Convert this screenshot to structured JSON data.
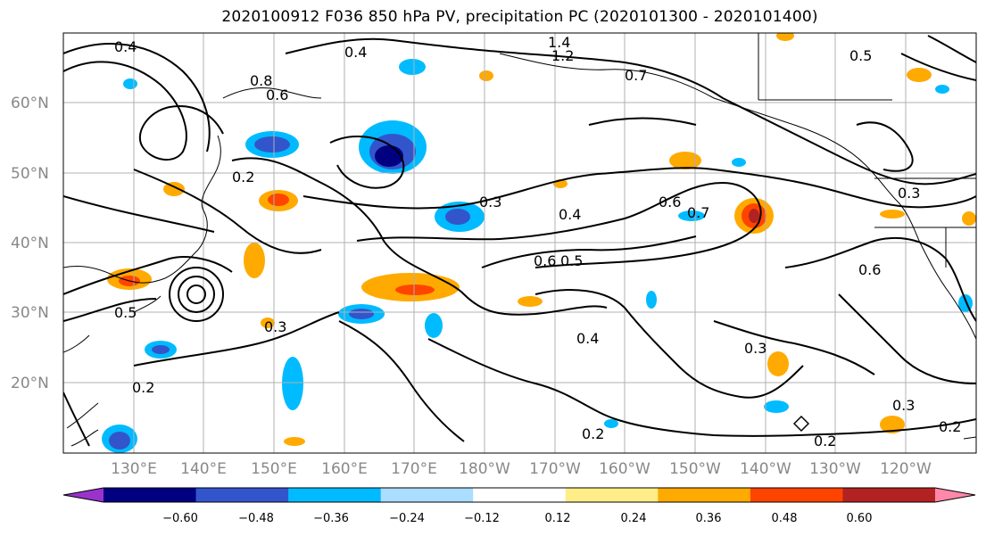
{
  "title": "2020100912 F036 850 hPa PV, precipitation PC (2020101300 - 2020101400)",
  "map": {
    "lat_labels": [
      "60°N",
      "50°N",
      "40°N",
      "30°N",
      "20°N"
    ],
    "lon_labels": [
      "130°E",
      "140°E",
      "150°E",
      "160°E",
      "170°E",
      "180°W",
      "170°W",
      "160°W",
      "150°W",
      "140°W",
      "130°W",
      "120°W"
    ],
    "contour_labels": [
      "0.4",
      "1.4",
      "1.2",
      "0.4",
      "0.5",
      "0.8",
      "0.6",
      "0.7",
      "0.2",
      "0.3",
      "0.5",
      "0.3",
      "0.6",
      "0.4",
      "0.6",
      "0.5",
      "0.4",
      "0.3",
      "0.2",
      "0.2",
      "0.3",
      "0.2",
      "0.3",
      "0.2",
      "0.6",
      "0.7"
    ],
    "colors": {
      "coast": "#000000",
      "grid": "#b0b0b0",
      "contour": "#000000"
    }
  },
  "colorbar": {
    "ticks": [
      "−0.60",
      "−0.48",
      "−0.36",
      "−0.24",
      "−0.12",
      "0.12",
      "0.24",
      "0.36",
      "0.48",
      "0.60"
    ],
    "colors": [
      "#9933cc",
      "#000080",
      "#3355cc",
      "#00bbff",
      "#aaddff",
      "#ffffff",
      "#ffee88",
      "#ffaa00",
      "#ff4400",
      "#b22222",
      "#ff88aa"
    ]
  }
}
